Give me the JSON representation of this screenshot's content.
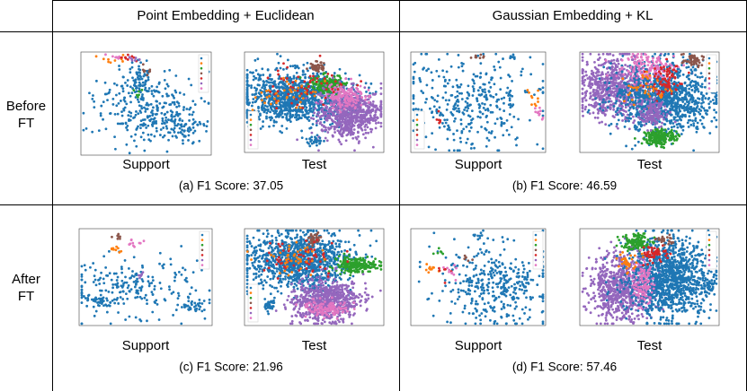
{
  "header": {
    "columns": [
      "Point Embedding + Euclidean",
      "Gaussian Embedding + KL"
    ]
  },
  "rows": [
    {
      "label": "Before FT",
      "panels": [
        {
          "plots": [
            "Support",
            "Test"
          ],
          "caption": "(a) F1 Score: 37.05"
        },
        {
          "plots": [
            "Support",
            "Test"
          ],
          "caption": "(b) F1 Score: 46.59"
        }
      ]
    },
    {
      "label": "After FT",
      "panels": [
        {
          "plots": [
            "Support",
            "Test"
          ],
          "caption": "(c) F1 Score: 21.96"
        },
        {
          "plots": [
            "Support",
            "Test"
          ],
          "caption": "(d) F1 Score: 57.46"
        }
      ]
    }
  ]
}
